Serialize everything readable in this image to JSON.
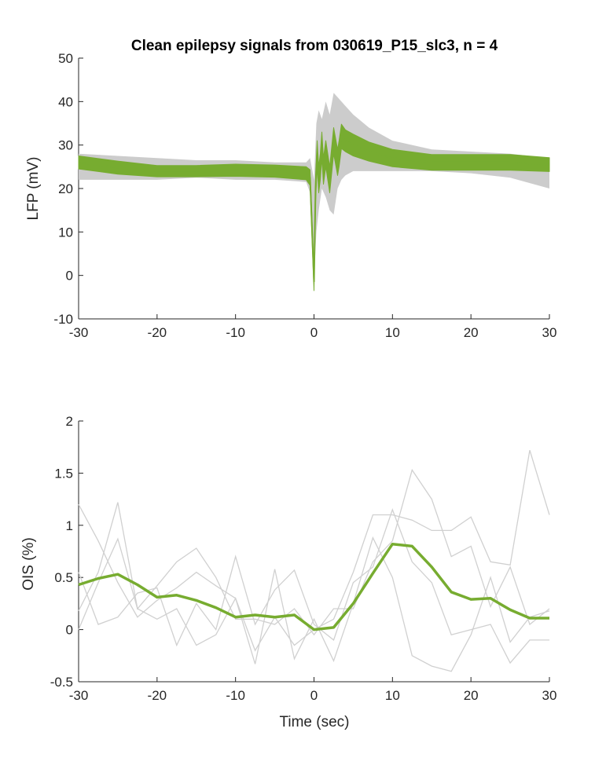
{
  "chart_data": [
    {
      "type": "line",
      "title": "Clean epilepsy signals from 030619_P15_slc3, n = 4",
      "xlabel": "",
      "ylabel": "LFP (mV)",
      "xlim": [
        -30,
        30
      ],
      "ylim": [
        -10,
        50
      ],
      "x_ticks": [
        -30,
        -20,
        -10,
        0,
        10,
        20,
        30
      ],
      "y_ticks": [
        -10,
        0,
        10,
        20,
        30,
        40,
        50
      ],
      "grid": false,
      "band_color": "#cccccc",
      "mean_color": "#77ac30",
      "series": [
        {
          "kind": "individual",
          "x": [
            -30,
            -25,
            -20,
            -15,
            -10,
            -5,
            -1,
            -0.5,
            0,
            0.3,
            0.6,
            1,
            1.5,
            2,
            2.5,
            3,
            3.5,
            4,
            5,
            7,
            10,
            15,
            20,
            25,
            30
          ],
          "upper": [
            28,
            27.5,
            27,
            26.5,
            26.5,
            26,
            26,
            27,
            22,
            35,
            38,
            36,
            40,
            37,
            42,
            41,
            40,
            39,
            37,
            34,
            31,
            29,
            28.5,
            28,
            27
          ],
          "lower": [
            22,
            22,
            22,
            22.5,
            22,
            22,
            21.5,
            19,
            -1,
            10,
            15,
            20,
            18,
            15,
            14,
            20,
            22,
            23,
            24,
            24,
            24,
            24,
            23.5,
            22.5,
            20
          ]
        },
        {
          "kind": "mean",
          "x": [
            -30,
            -25,
            -20,
            -15,
            -10,
            -5,
            -1,
            -0.5,
            0,
            0.2,
            0.4,
            0.6,
            0.8,
            1,
            1.2,
            1.5,
            2,
            2.5,
            3,
            3.2,
            3.5,
            4,
            5,
            7,
            10,
            15,
            20,
            25,
            30
          ],
          "y": [
            26,
            24.8,
            24,
            24,
            24.2,
            24,
            23.5,
            22.5,
            -1.5,
            20,
            28,
            22,
            25,
            30,
            24,
            28,
            22,
            31,
            26,
            28,
            32,
            31,
            30,
            28.5,
            27,
            26,
            26,
            26,
            25.5
          ],
          "thickness": [
            1.5,
            1.5,
            1.3,
            1.3,
            1.4,
            1.4,
            1.5,
            1.8,
            2,
            3,
            3,
            3,
            3,
            3,
            3,
            3,
            3,
            3,
            3,
            3,
            2.8,
            2.5,
            2.5,
            2.2,
            2,
            1.8,
            1.8,
            1.8,
            1.6
          ]
        }
      ]
    },
    {
      "type": "line",
      "title": "",
      "xlabel": "Time (sec)",
      "ylabel": "OIS (%)",
      "xlim": [
        -30,
        30
      ],
      "ylim": [
        -0.5,
        2
      ],
      "x_ticks": [
        -30,
        -20,
        -10,
        0,
        10,
        20,
        30
      ],
      "y_ticks": [
        -0.5,
        0,
        0.5,
        1,
        1.5,
        2
      ],
      "grid": false,
      "trace_color": "#d0d0d0",
      "mean_color": "#77ac30",
      "x": [
        -30,
        -27.5,
        -25,
        -22.5,
        -20,
        -17.5,
        -15,
        -12.5,
        -10,
        -7.5,
        -5,
        -2.5,
        0,
        2.5,
        5,
        7.5,
        10,
        12.5,
        15,
        17.5,
        20,
        22.5,
        25,
        27.5,
        30
      ],
      "series": [
        {
          "kind": "individual",
          "values": [
            1.2,
            0.85,
            0.45,
            0.12,
            0.28,
            0.4,
            0.55,
            0.42,
            0.3,
            -0.2,
            0.12,
            -0.15,
            0,
            0.1,
            0.55,
            1.1,
            1.1,
            1.05,
            0.95,
            0.95,
            1.08,
            0.65,
            0.62,
            1.72,
            1.1
          ]
        },
        {
          "kind": "individual",
          "values": [
            0.18,
            0.55,
            1.22,
            0.2,
            0.42,
            0.65,
            0.78,
            0.5,
            0.1,
            0.1,
            0.05,
            0.2,
            -0.05,
            0.2,
            0.2,
            0.65,
            0.85,
            1.53,
            1.25,
            0.7,
            0.8,
            0.22,
            0.6,
            0.05,
            0.2
          ]
        },
        {
          "kind": "individual",
          "values": [
            0.0,
            0.45,
            0.87,
            0.2,
            0.1,
            0.2,
            -0.15,
            -0.05,
            0.3,
            -0.33,
            0.58,
            -0.28,
            0.1,
            -0.3,
            0.25,
            0.88,
            0.5,
            -0.25,
            -0.35,
            -0.4,
            -0.05,
            0.5,
            -0.12,
            0.12,
            0.18
          ]
        },
        {
          "kind": "individual",
          "values": [
            0.55,
            0.05,
            0.12,
            0.35,
            0.4,
            -0.15,
            0.25,
            0.0,
            0.7,
            0.05,
            0.38,
            0.57,
            0.05,
            -0.1,
            0.45,
            0.6,
            1.15,
            0.65,
            0.45,
            -0.05,
            0.0,
            0.05,
            -0.32,
            -0.1,
            -0.1
          ]
        },
        {
          "kind": "mean",
          "values": [
            0.43,
            0.49,
            0.53,
            0.43,
            0.31,
            0.33,
            0.28,
            0.21,
            0.12,
            0.14,
            0.12,
            0.14,
            0.0,
            0.02,
            0.25,
            0.54,
            0.82,
            0.8,
            0.6,
            0.36,
            0.29,
            0.3,
            0.19,
            0.11,
            0.11
          ]
        }
      ]
    }
  ]
}
